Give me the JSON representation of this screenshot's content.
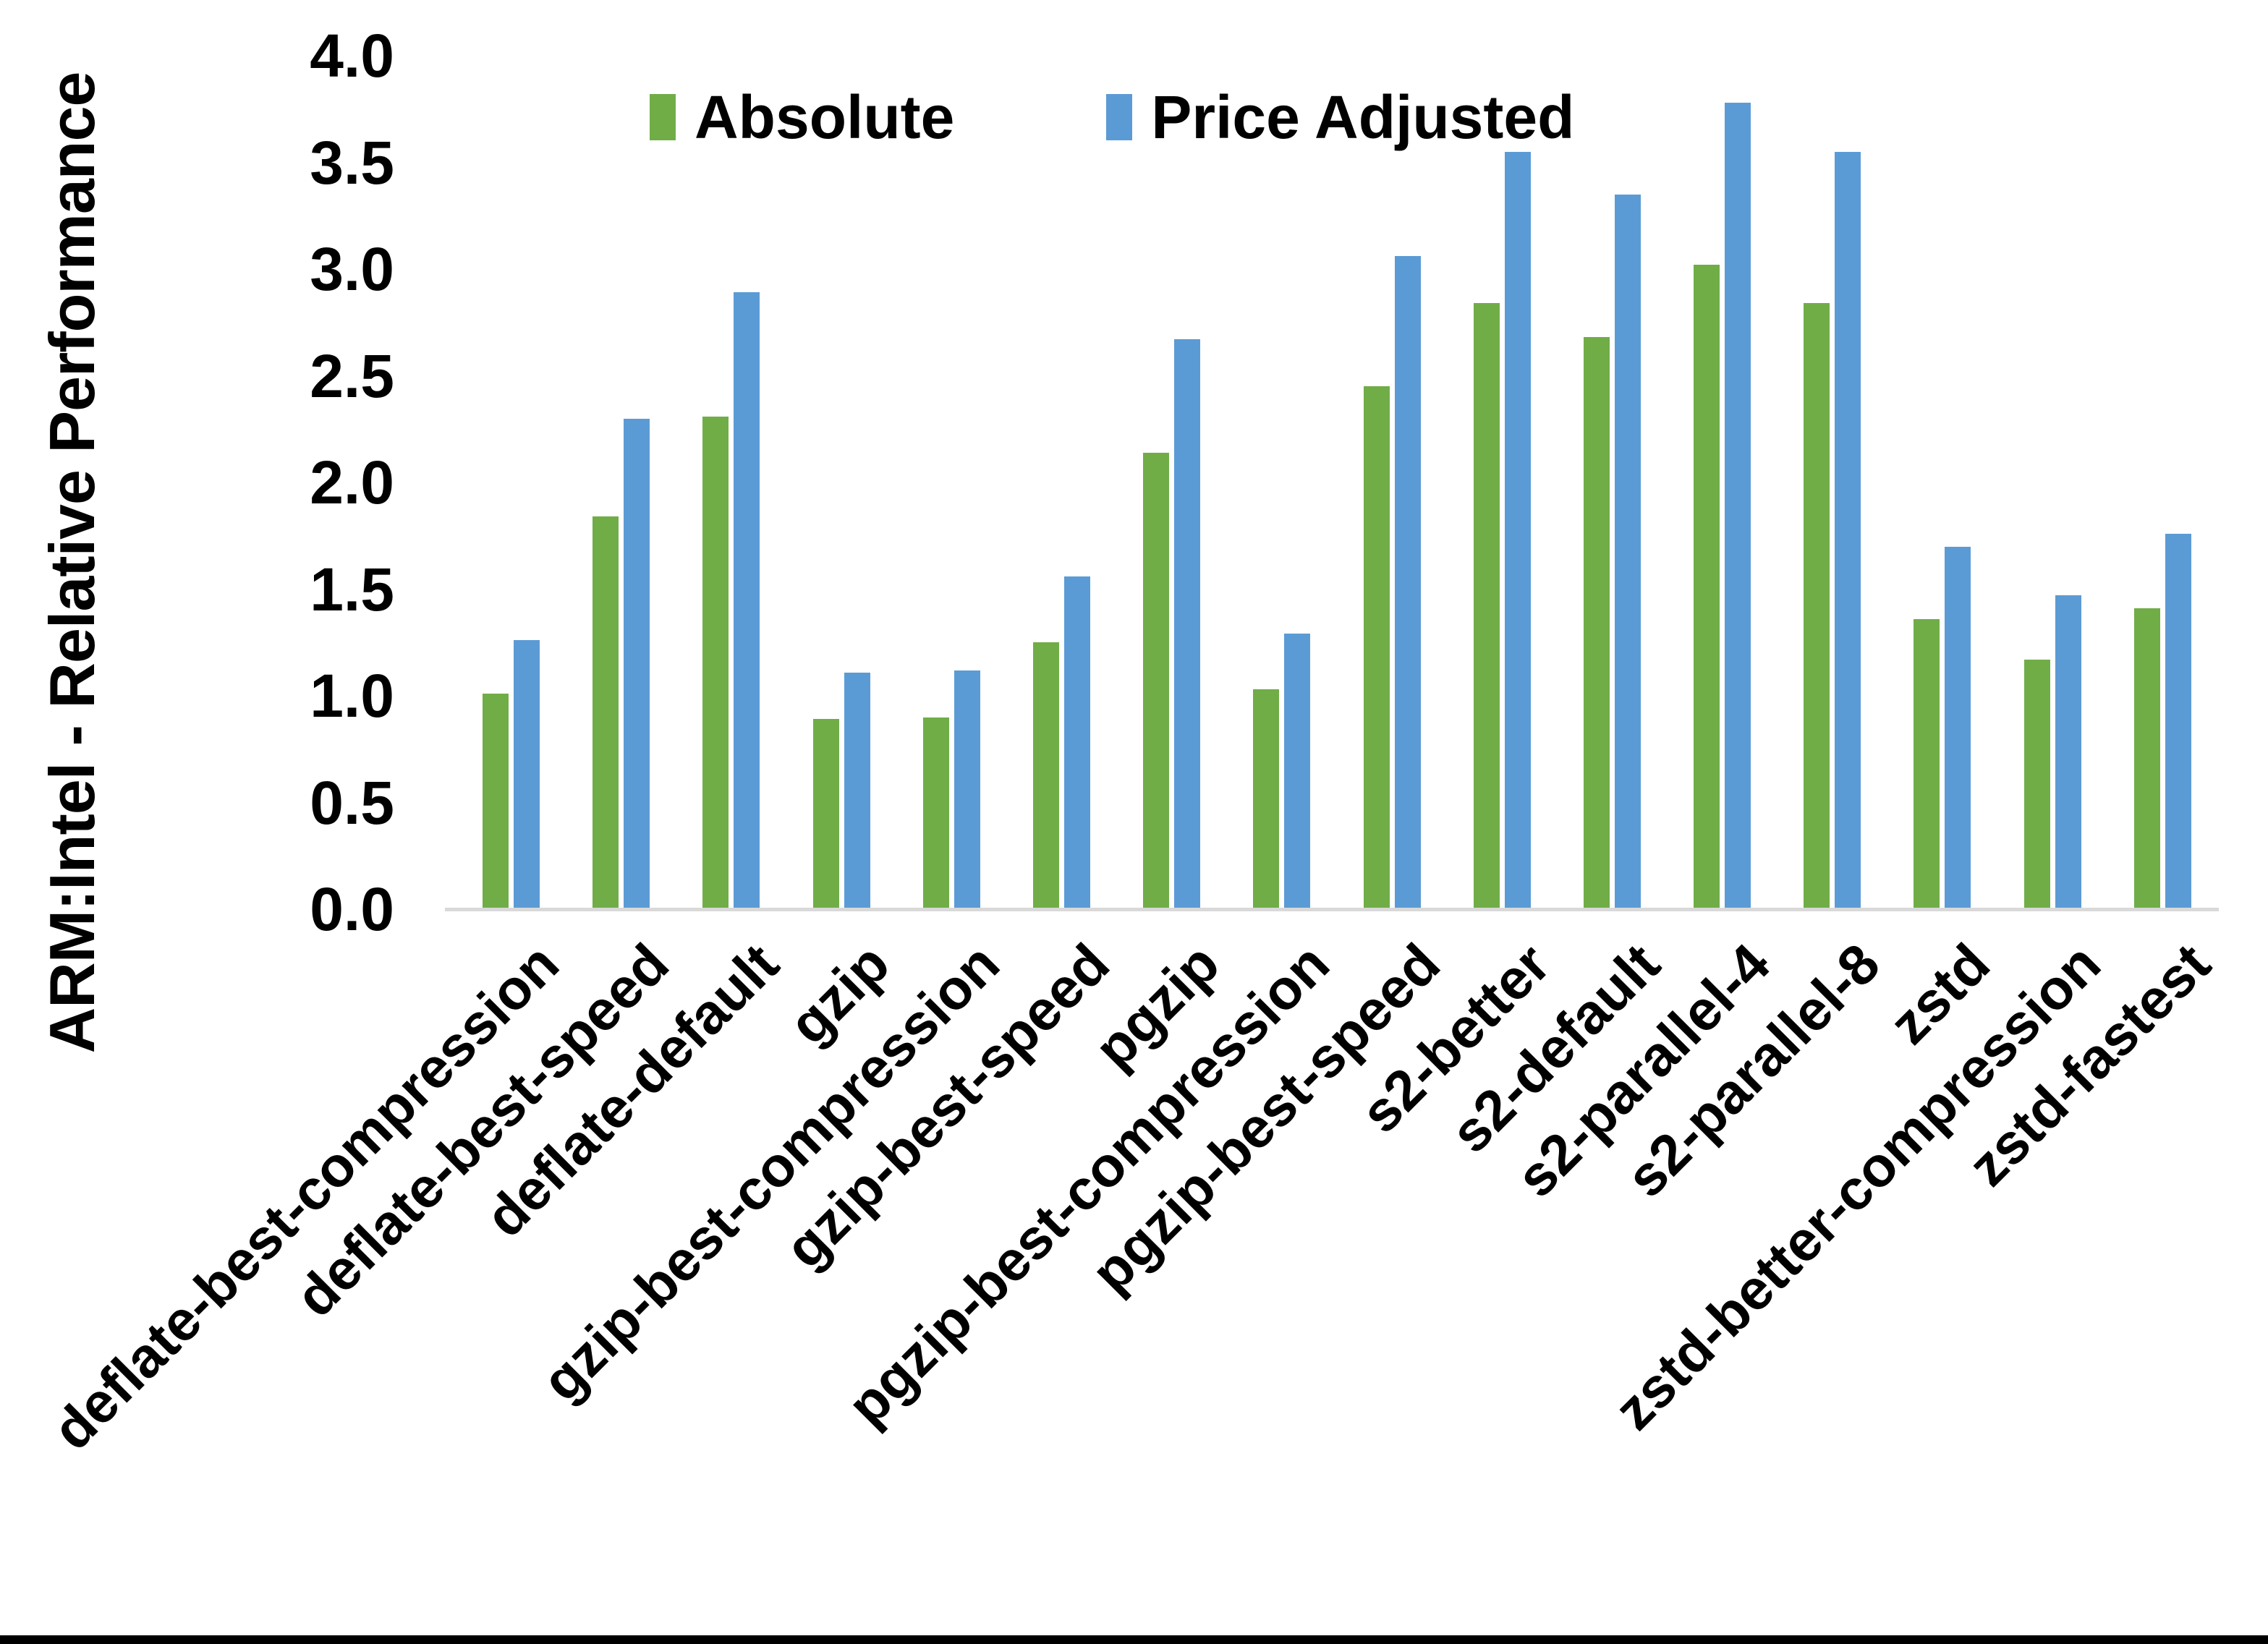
{
  "chart_data": {
    "type": "bar",
    "title": "",
    "xlabel": "",
    "ylabel": "ARM:Intel - Relative Performance",
    "ylim": [
      0.0,
      4.0
    ],
    "ytick_step": 0.5,
    "ytick_labels": [
      "4.0",
      "3.5",
      "3.0",
      "2.5",
      "2.0",
      "1.5",
      "1.0",
      "0.5",
      "0.0"
    ],
    "grid": false,
    "legend_position": "top-center",
    "categories": [
      "deflate-best-compression",
      "deflate-best-speed",
      "deflate-default",
      "gzip",
      "gzip-best-compression",
      "gzip-best-speed",
      "pgzip",
      "pgzip-best-compression",
      "pgzip-best-speed",
      "s2-better",
      "s2-default",
      "s2-parallel-4",
      "s2-parallel-8",
      "zstd",
      "zstd-better-compression",
      "zstd-fastest"
    ],
    "series": [
      {
        "name": "Absolute",
        "color": "#70AD47",
        "values": [
          1.01,
          1.84,
          2.31,
          0.89,
          0.9,
          1.25,
          2.14,
          1.03,
          2.45,
          2.84,
          2.68,
          3.02,
          2.84,
          1.36,
          1.17,
          1.41
        ]
      },
      {
        "name": "Price Adjusted",
        "color": "#5B9BD5",
        "values": [
          1.26,
          2.3,
          2.89,
          1.11,
          1.12,
          1.56,
          2.67,
          1.29,
          3.06,
          3.55,
          3.35,
          3.78,
          3.55,
          1.7,
          1.47,
          1.76
        ]
      }
    ]
  },
  "colors": {
    "axis_line": "#D9D9D9",
    "text": "#000000",
    "bottom_border": "#000000",
    "background": "#FFFFFF"
  }
}
